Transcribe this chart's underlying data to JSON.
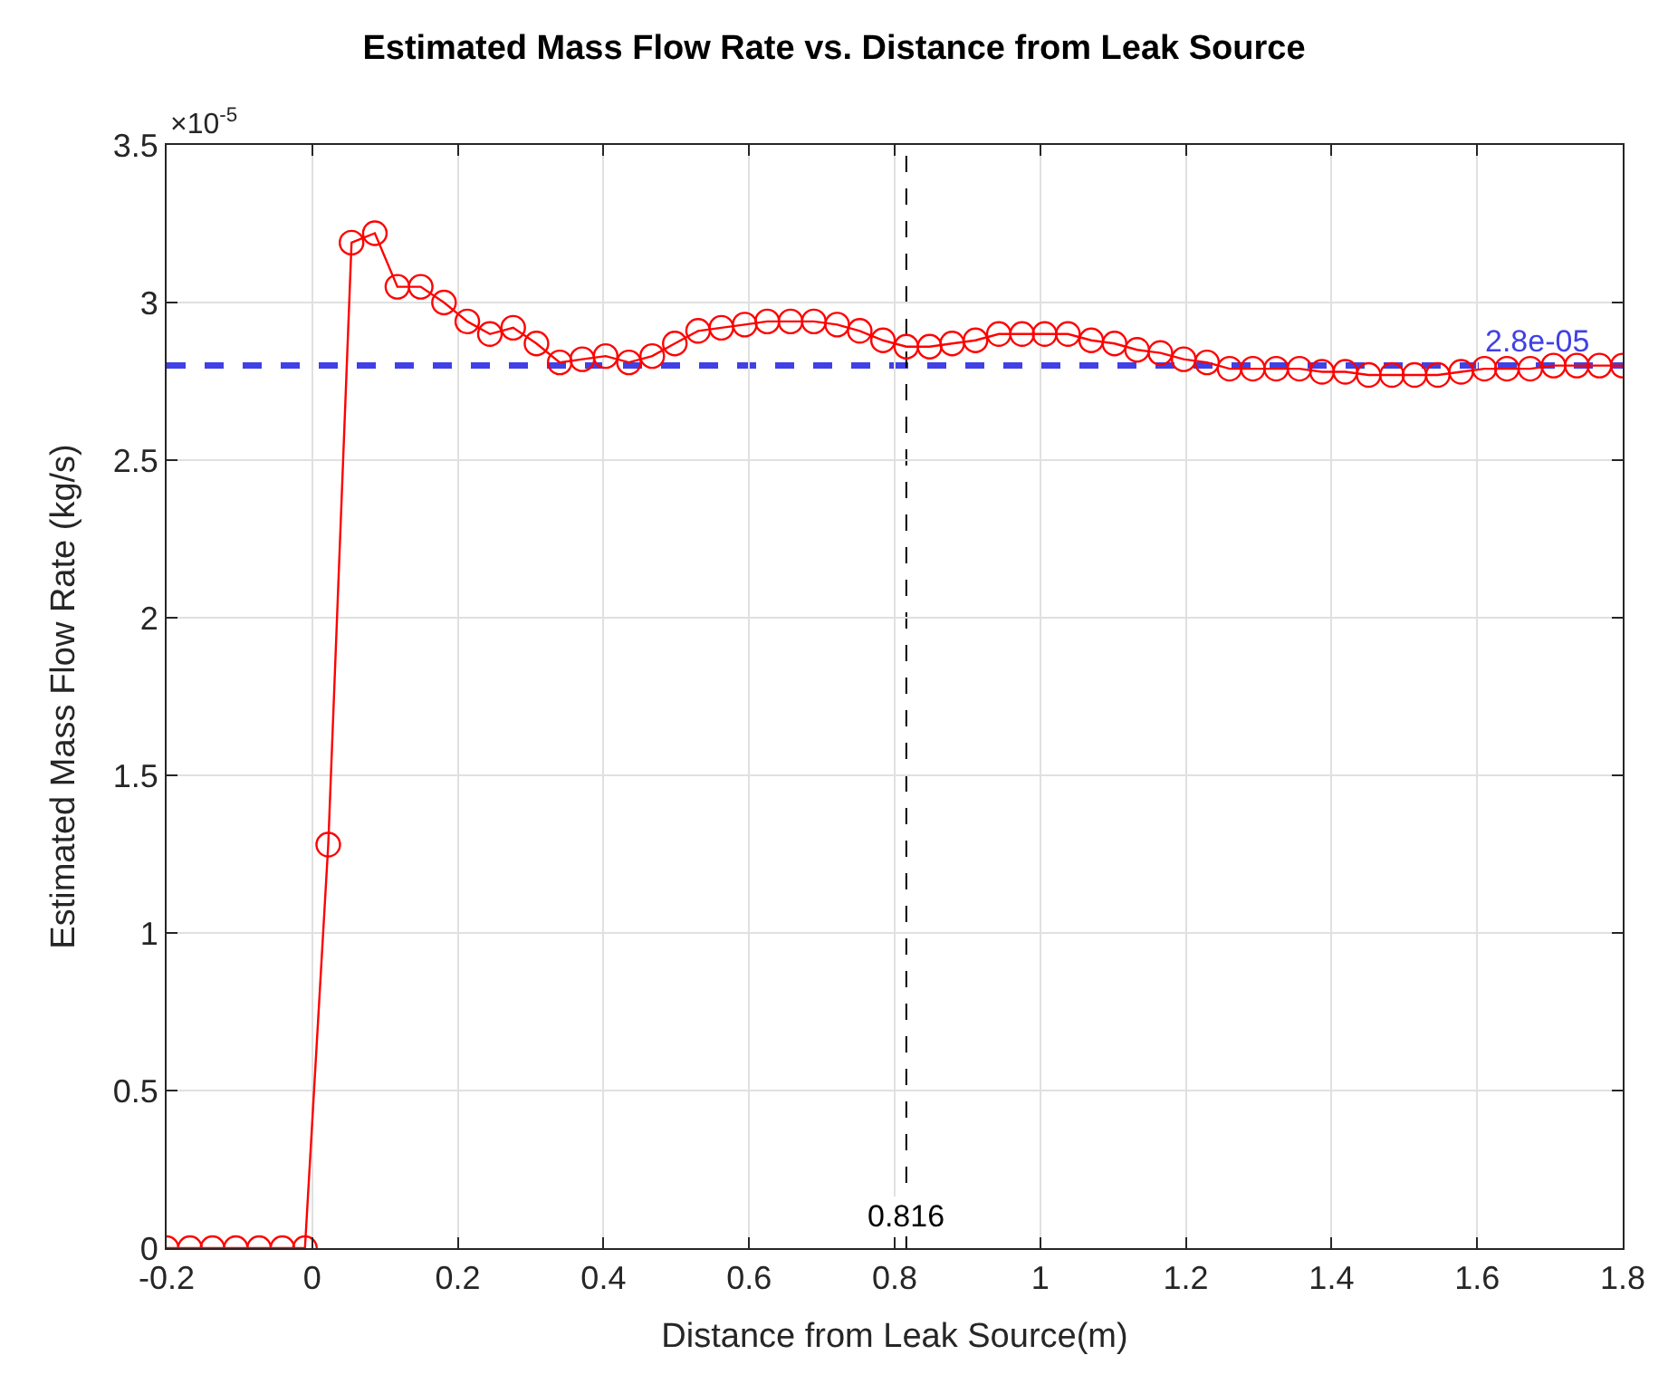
{
  "chart_data": {
    "type": "line",
    "title": "Estimated Mass Flow Rate vs. Distance from Leak Source",
    "xlabel": "Distance from Leak Source(m)",
    "ylabel": "Estimated Mass Flow Rate (kg/s)",
    "annotations": [
      "×10$^{-5}$"
    ],
    "x": [
      -0.2,
      -0.168,
      -0.137,
      -0.105,
      -0.073,
      -0.041,
      -0.01,
      0.022,
      0.054,
      0.086,
      0.117,
      0.149,
      0.181,
      0.213,
      0.244,
      0.276,
      0.308,
      0.34,
      0.371,
      0.403,
      0.435,
      0.467,
      0.498,
      0.53,
      0.562,
      0.594,
      0.625,
      0.657,
      0.689,
      0.721,
      0.752,
      0.784,
      0.816,
      0.848,
      0.879,
      0.911,
      0.943,
      0.975,
      1.006,
      1.038,
      1.07,
      1.102,
      1.133,
      1.165,
      1.197,
      1.229,
      1.26,
      1.292,
      1.324,
      1.356,
      1.387,
      1.419,
      1.451,
      1.483,
      1.514,
      1.546,
      1.578,
      1.61,
      1.641,
      1.673,
      1.705,
      1.737,
      1.768,
      1.8
    ],
    "series": [
      {
        "color": "#ff0000",
        "values": [
          0,
          0,
          0,
          0,
          0,
          0,
          0,
          1.28,
          3.19,
          3.22,
          3.05,
          3.05,
          3.0,
          2.94,
          2.9,
          2.92,
          2.87,
          2.81,
          2.82,
          2.83,
          2.81,
          2.83,
          2.87,
          2.91,
          2.92,
          2.93,
          2.94,
          2.94,
          2.94,
          2.93,
          2.91,
          2.88,
          2.86,
          2.86,
          2.87,
          2.88,
          2.9,
          2.9,
          2.9,
          2.9,
          2.88,
          2.87,
          2.85,
          2.84,
          2.82,
          2.81,
          2.79,
          2.79,
          2.79,
          2.79,
          2.78,
          2.78,
          2.77,
          2.77,
          2.77,
          2.77,
          2.78,
          2.79,
          2.79,
          2.79,
          2.8,
          2.8,
          2.8,
          2.8
        ]
      }
    ],
    "xlim": [
      -0.2,
      1.8
    ],
    "xticks": [
      {
        "value": -0.2,
        "label": "-0.2"
      },
      0,
      0.2,
      0.4,
      0.6,
      0.8,
      1,
      1.2,
      1.4,
      1.6,
      1.8
    ],
    "ylim": [
      0,
      3.5
    ],
    "yticks": [
      0,
      0.5,
      1,
      1.5,
      2,
      2.5,
      3,
      3.5
    ],
    "ref_lines": [
      {
        "axis": "y",
        "value": 2.8,
        "label": "2.8e-05",
        "color": "#4040e6",
        "line_style": "dashed"
      },
      {
        "axis": "x",
        "value": 0.816,
        "label": "0.816",
        "color": "#000000",
        "line_style": "dashed"
      }
    ],
    "grid": true,
    "marker": "circle",
    "line_style": "solid"
  }
}
